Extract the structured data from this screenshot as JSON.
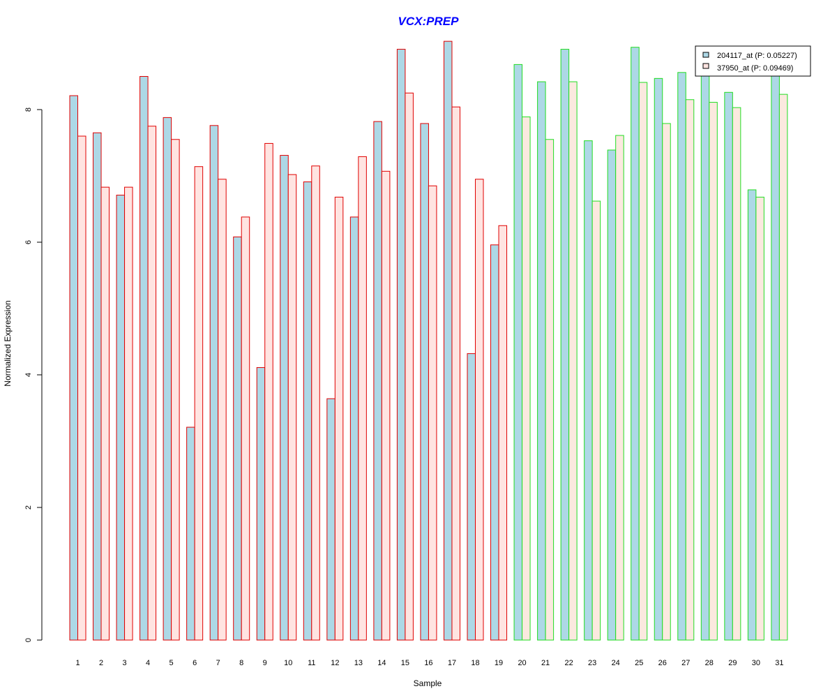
{
  "chart_data": {
    "type": "bar",
    "title": "VCX:PREP",
    "xlabel": "Sample",
    "ylabel": "Normalized Expression",
    "ylim": [
      0,
      9.3
    ],
    "yticks": [
      "0",
      "2",
      "4",
      "6",
      "8"
    ],
    "categories": [
      "1",
      "2",
      "3",
      "4",
      "5",
      "6",
      "7",
      "8",
      "9",
      "10",
      "11",
      "12",
      "13",
      "14",
      "15",
      "16",
      "17",
      "18",
      "19",
      "20",
      "21",
      "22",
      "23",
      "24",
      "25",
      "26",
      "27",
      "28",
      "29",
      "30",
      "31"
    ],
    "groups": {
      "red_border": [
        1,
        19
      ],
      "green_border": [
        20,
        31
      ]
    },
    "series": [
      {
        "name": "204117_at (P: 0.05227)",
        "fill": "#ADD8E6",
        "values": [
          8.21,
          7.65,
          6.71,
          8.5,
          7.88,
          3.21,
          7.76,
          6.08,
          4.11,
          7.31,
          6.91,
          3.64,
          6.38,
          7.82,
          8.91,
          7.79,
          9.03,
          4.32,
          5.96,
          8.68,
          8.42,
          8.91,
          7.53,
          7.39,
          8.94,
          8.47,
          8.56,
          8.62,
          8.26,
          6.79,
          8.55
        ]
      },
      {
        "name": "37950_at (P: 0.09469)",
        "fill": "#FFE4E1",
        "values": [
          7.6,
          6.83,
          6.83,
          7.75,
          7.55,
          7.14,
          6.95,
          6.38,
          7.49,
          7.02,
          7.15,
          6.68,
          7.29,
          7.07,
          8.25,
          6.85,
          8.04,
          6.95,
          6.25,
          7.89,
          7.55,
          8.42,
          6.62,
          7.61,
          8.41,
          7.79,
          8.15,
          8.11,
          8.03,
          6.68,
          8.23
        ]
      }
    ],
    "colors": {
      "title": "#0000FF",
      "border_group1": "#E00000",
      "border_group2": "#22DD22",
      "fill2_group2": "#FBE9DF"
    },
    "legend_position": "top-right",
    "grid": false
  }
}
